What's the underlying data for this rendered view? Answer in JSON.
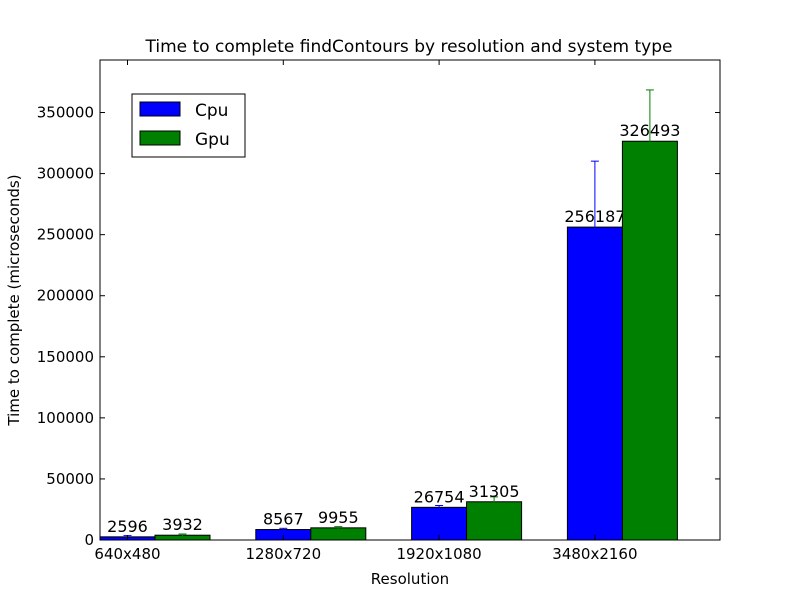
{
  "chart_data": {
    "type": "bar",
    "title": "Time to complete findContours by resolution and system type",
    "xlabel": "Resolution",
    "ylabel": "Time to complete (microseconds)",
    "categories": [
      "640x480",
      "1280x720",
      "1920x1080",
      "3480x2160"
    ],
    "series": [
      {
        "name": "Cpu",
        "color": "#0000ff",
        "values": [
          2596,
          8567,
          26754,
          256187
        ],
        "error": [
          1000,
          1000,
          1500,
          54000
        ]
      },
      {
        "name": "Gpu",
        "color": "#008000",
        "values": [
          3932,
          9955,
          31305,
          326493
        ],
        "error": [
          1000,
          1000,
          4000,
          42000
        ]
      }
    ],
    "ylim": [
      0,
      393000
    ],
    "yticks": [
      0,
      50000,
      100000,
      150000,
      200000,
      250000,
      300000,
      350000
    ],
    "legend_position": "top-left",
    "grid": false
  }
}
